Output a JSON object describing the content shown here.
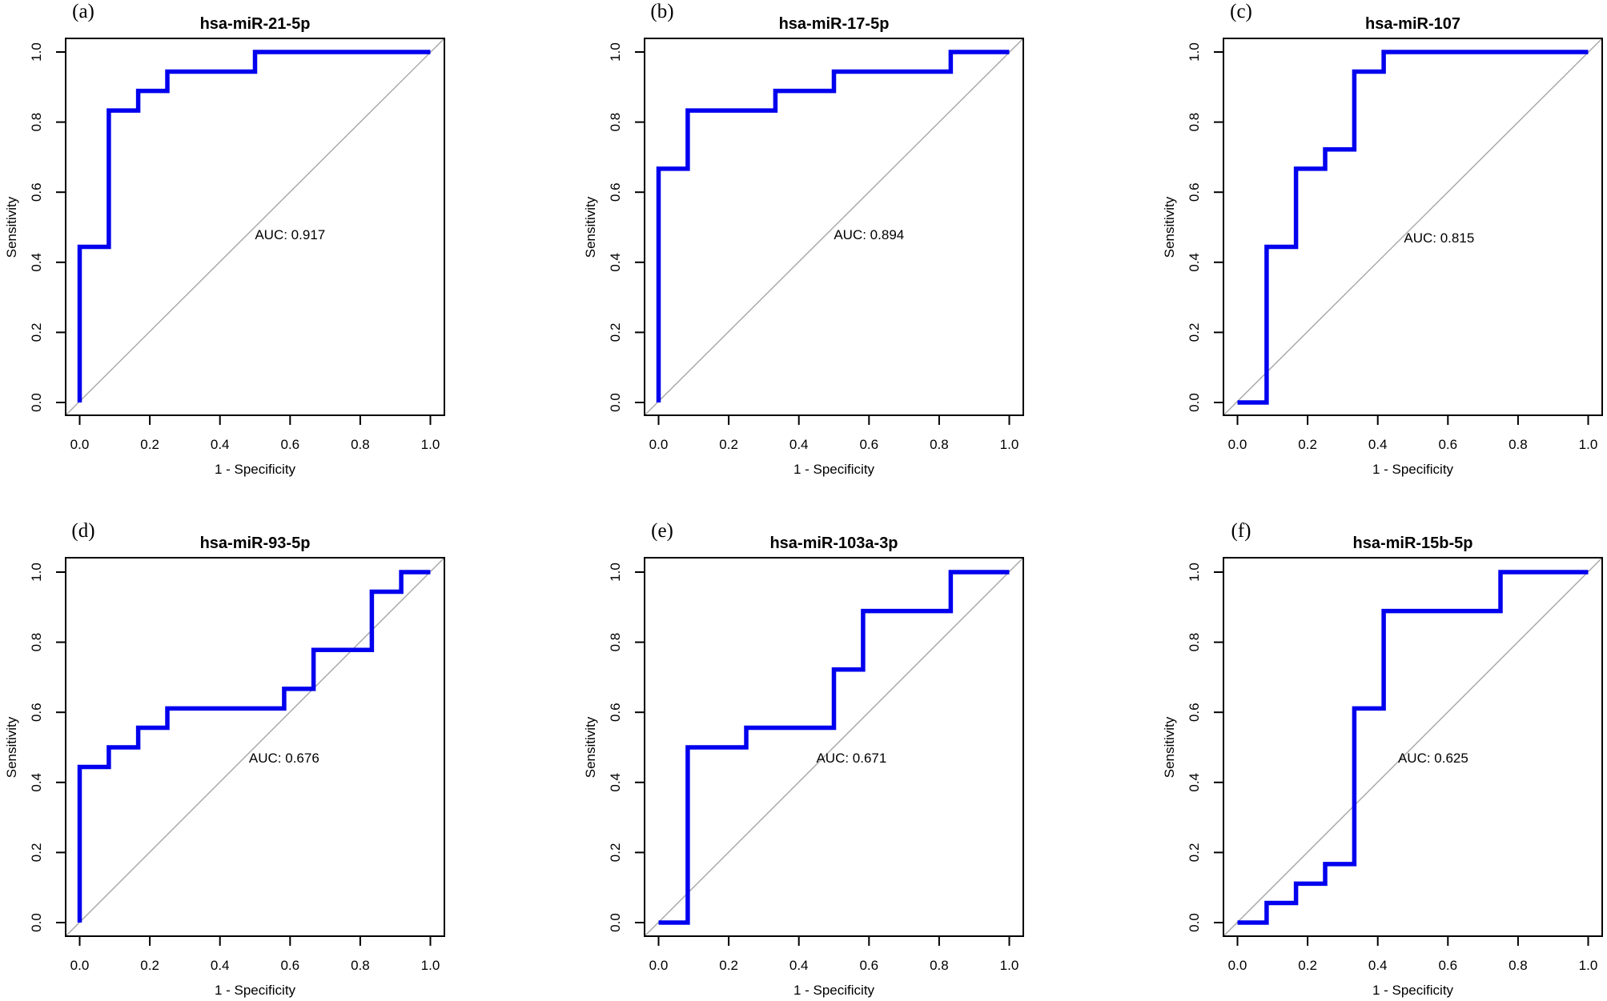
{
  "figure": {
    "description": "Six ROC curve panels (a)-(f) for candidate serum miRNAs",
    "colors": {
      "curve": "#0000EE",
      "auc_text": "#0000EE",
      "diagonal": "#A6A6A6",
      "axis": "#000000",
      "background": "#FFFFFF"
    }
  },
  "chart_data": [
    {
      "type": "line",
      "subtype": "roc_step_curve",
      "panel_label": "(a)",
      "title": "hsa-miR-21-5p",
      "auc": 0.917,
      "auc_label": "AUC: 0.917",
      "auc_label_pos": [
        0.6,
        0.48
      ],
      "xlabel": "1 - Specificity",
      "ylabel": "Sensitivity",
      "xlim": [
        0,
        1
      ],
      "ylim": [
        0,
        1
      ],
      "x_ticks": [
        "0.0",
        "0.2",
        "0.4",
        "0.6",
        "0.8",
        "1.0"
      ],
      "y_ticks": [
        "0.0",
        "0.2",
        "0.4",
        "0.6",
        "0.8",
        "1.0"
      ],
      "grid": false,
      "diagonal_reference": true,
      "roc_points": [
        [
          0,
          0
        ],
        [
          0,
          0.444
        ],
        [
          0.083,
          0.444
        ],
        [
          0.083,
          0.833
        ],
        [
          0.167,
          0.833
        ],
        [
          0.167,
          0.889
        ],
        [
          0.25,
          0.889
        ],
        [
          0.25,
          0.944
        ],
        [
          0.5,
          0.944
        ],
        [
          0.5,
          1.0
        ],
        [
          1.0,
          1.0
        ]
      ]
    },
    {
      "type": "line",
      "subtype": "roc_step_curve",
      "panel_label": "(b)",
      "title": "hsa-miR-17-5p",
      "auc": 0.894,
      "auc_label": "AUC: 0.894",
      "auc_label_pos": [
        0.6,
        0.48
      ],
      "xlabel": "1 - Specificity",
      "ylabel": "Sensitivity",
      "xlim": [
        0,
        1
      ],
      "ylim": [
        0,
        1
      ],
      "x_ticks": [
        "0.0",
        "0.2",
        "0.4",
        "0.6",
        "0.8",
        "1.0"
      ],
      "y_ticks": [
        "0.0",
        "0.2",
        "0.4",
        "0.6",
        "0.8",
        "1.0"
      ],
      "grid": false,
      "diagonal_reference": true,
      "roc_points": [
        [
          0,
          0
        ],
        [
          0,
          0.667
        ],
        [
          0.083,
          0.667
        ],
        [
          0.083,
          0.833
        ],
        [
          0.333,
          0.833
        ],
        [
          0.333,
          0.889
        ],
        [
          0.5,
          0.889
        ],
        [
          0.5,
          0.944
        ],
        [
          0.833,
          0.944
        ],
        [
          0.833,
          1.0
        ],
        [
          1.0,
          1.0
        ]
      ]
    },
    {
      "type": "line",
      "subtype": "roc_step_curve",
      "panel_label": "(c)",
      "title": "hsa-miR-107",
      "auc": 0.815,
      "auc_label": "AUC: 0.815",
      "auc_label_pos": [
        0.575,
        0.47
      ],
      "xlabel": "1 - Specificity",
      "ylabel": "Sensitivity",
      "xlim": [
        0,
        1
      ],
      "ylim": [
        0,
        1
      ],
      "x_ticks": [
        "0.0",
        "0.2",
        "0.4",
        "0.6",
        "0.8",
        "1.0"
      ],
      "y_ticks": [
        "0.0",
        "0.2",
        "0.4",
        "0.6",
        "0.8",
        "1.0"
      ],
      "grid": false,
      "diagonal_reference": true,
      "roc_points": [
        [
          0,
          0
        ],
        [
          0.083,
          0
        ],
        [
          0.083,
          0.444
        ],
        [
          0.167,
          0.444
        ],
        [
          0.167,
          0.667
        ],
        [
          0.25,
          0.667
        ],
        [
          0.25,
          0.722
        ],
        [
          0.333,
          0.722
        ],
        [
          0.333,
          0.944
        ],
        [
          0.417,
          0.944
        ],
        [
          0.417,
          1.0
        ],
        [
          1.0,
          1.0
        ]
      ]
    },
    {
      "type": "line",
      "subtype": "roc_step_curve",
      "panel_label": "(d)",
      "title": "hsa-miR-93-5p",
      "auc": 0.676,
      "auc_label": "AUC: 0.676",
      "auc_label_pos": [
        0.583,
        0.47
      ],
      "xlabel": "1 - Specificity",
      "ylabel": "Sensitivity",
      "xlim": [
        0,
        1
      ],
      "ylim": [
        0,
        1
      ],
      "x_ticks": [
        "0.0",
        "0.2",
        "0.4",
        "0.6",
        "0.8",
        "1.0"
      ],
      "y_ticks": [
        "0.0",
        "0.2",
        "0.4",
        "0.6",
        "0.8",
        "1.0"
      ],
      "grid": false,
      "diagonal_reference": true,
      "roc_points": [
        [
          0,
          0
        ],
        [
          0,
          0.444
        ],
        [
          0.083,
          0.444
        ],
        [
          0.083,
          0.5
        ],
        [
          0.167,
          0.5
        ],
        [
          0.167,
          0.556
        ],
        [
          0.25,
          0.556
        ],
        [
          0.25,
          0.611
        ],
        [
          0.583,
          0.611
        ],
        [
          0.583,
          0.667
        ],
        [
          0.667,
          0.667
        ],
        [
          0.667,
          0.778
        ],
        [
          0.833,
          0.778
        ],
        [
          0.833,
          0.944
        ],
        [
          0.917,
          0.944
        ],
        [
          0.917,
          1.0
        ],
        [
          1.0,
          1.0
        ]
      ]
    },
    {
      "type": "line",
      "subtype": "roc_step_curve",
      "panel_label": "(e)",
      "title": "hsa-miR-103a-3p",
      "auc": 0.671,
      "auc_label": "AUC: 0.671",
      "auc_label_pos": [
        0.55,
        0.47
      ],
      "xlabel": "1 - Specificity",
      "ylabel": "Sensitivity",
      "xlim": [
        0,
        1
      ],
      "ylim": [
        0,
        1
      ],
      "x_ticks": [
        "0.0",
        "0.2",
        "0.4",
        "0.6",
        "0.8",
        "1.0"
      ],
      "y_ticks": [
        "0.0",
        "0.2",
        "0.4",
        "0.6",
        "0.8",
        "1.0"
      ],
      "grid": false,
      "diagonal_reference": true,
      "roc_points": [
        [
          0,
          0
        ],
        [
          0.083,
          0
        ],
        [
          0.083,
          0.5
        ],
        [
          0.25,
          0.5
        ],
        [
          0.25,
          0.556
        ],
        [
          0.5,
          0.556
        ],
        [
          0.5,
          0.722
        ],
        [
          0.583,
          0.722
        ],
        [
          0.583,
          0.889
        ],
        [
          0.833,
          0.889
        ],
        [
          0.833,
          1.0
        ],
        [
          1.0,
          1.0
        ]
      ]
    },
    {
      "type": "line",
      "subtype": "roc_step_curve",
      "panel_label": "(f)",
      "title": "hsa-miR-15b-5p",
      "auc": 0.625,
      "auc_label": "AUC: 0.625",
      "auc_label_pos": [
        0.558,
        0.47
      ],
      "xlabel": "1 - Specificity",
      "ylabel": "Sensitivity",
      "xlim": [
        0,
        1
      ],
      "ylim": [
        0,
        1
      ],
      "x_ticks": [
        "0.0",
        "0.2",
        "0.4",
        "0.6",
        "0.8",
        "1.0"
      ],
      "y_ticks": [
        "0.0",
        "0.2",
        "0.4",
        "0.6",
        "0.8",
        "1.0"
      ],
      "grid": false,
      "diagonal_reference": true,
      "roc_points": [
        [
          0,
          0
        ],
        [
          0.083,
          0
        ],
        [
          0.083,
          0.056
        ],
        [
          0.167,
          0.056
        ],
        [
          0.167,
          0.111
        ],
        [
          0.25,
          0.111
        ],
        [
          0.25,
          0.167
        ],
        [
          0.333,
          0.167
        ],
        [
          0.333,
          0.611
        ],
        [
          0.417,
          0.611
        ],
        [
          0.417,
          0.889
        ],
        [
          0.75,
          0.889
        ],
        [
          0.75,
          1.0
        ],
        [
          1.0,
          1.0
        ]
      ]
    }
  ]
}
